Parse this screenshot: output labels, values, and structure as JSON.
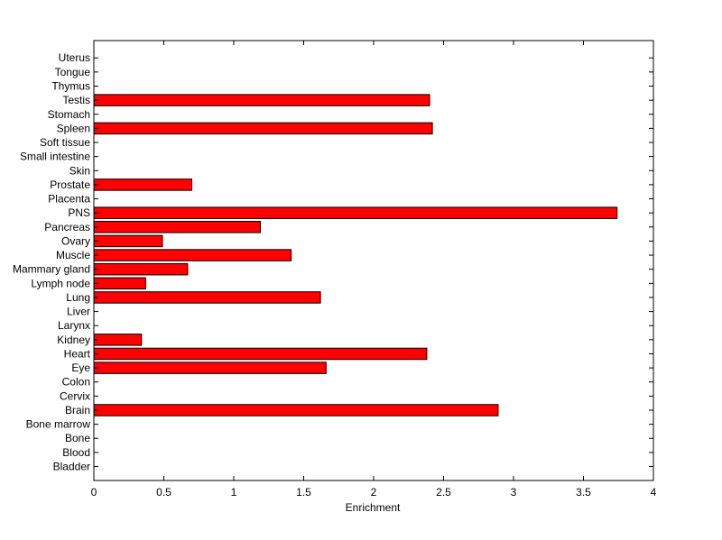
{
  "chart_data": {
    "type": "bar",
    "orientation": "horizontal",
    "categories": [
      "Bladder",
      "Blood",
      "Bone",
      "Bone marrow",
      "Brain",
      "Cervix",
      "Colon",
      "Eye",
      "Heart",
      "Kidney",
      "Larynx",
      "Liver",
      "Lung",
      "Lymph node",
      "Mammary gland",
      "Muscle",
      "Ovary",
      "Pancreas",
      "PNS",
      "Placenta",
      "Prostate",
      "Skin",
      "Small intestine",
      "Soft tissue",
      "Spleen",
      "Stomach",
      "Testis",
      "Thymus",
      "Tongue",
      "Uterus"
    ],
    "values": [
      0,
      0,
      0,
      0,
      2.89,
      0,
      0,
      1.66,
      2.38,
      0.34,
      0,
      0,
      1.62,
      0.37,
      0.67,
      1.41,
      0.49,
      1.19,
      3.74,
      0,
      0.7,
      0,
      0,
      0,
      2.42,
      0,
      2.4,
      0,
      0,
      0
    ],
    "title": "",
    "xlabel": "Enrichment",
    "ylabel": "",
    "xlim": [
      0,
      4
    ],
    "xticks": [
      "0",
      "0.5",
      "1",
      "1.5",
      "2",
      "2.5",
      "3",
      "3.5",
      "4"
    ],
    "bar_color": "#ff0000",
    "grid": false,
    "legend": "none"
  }
}
